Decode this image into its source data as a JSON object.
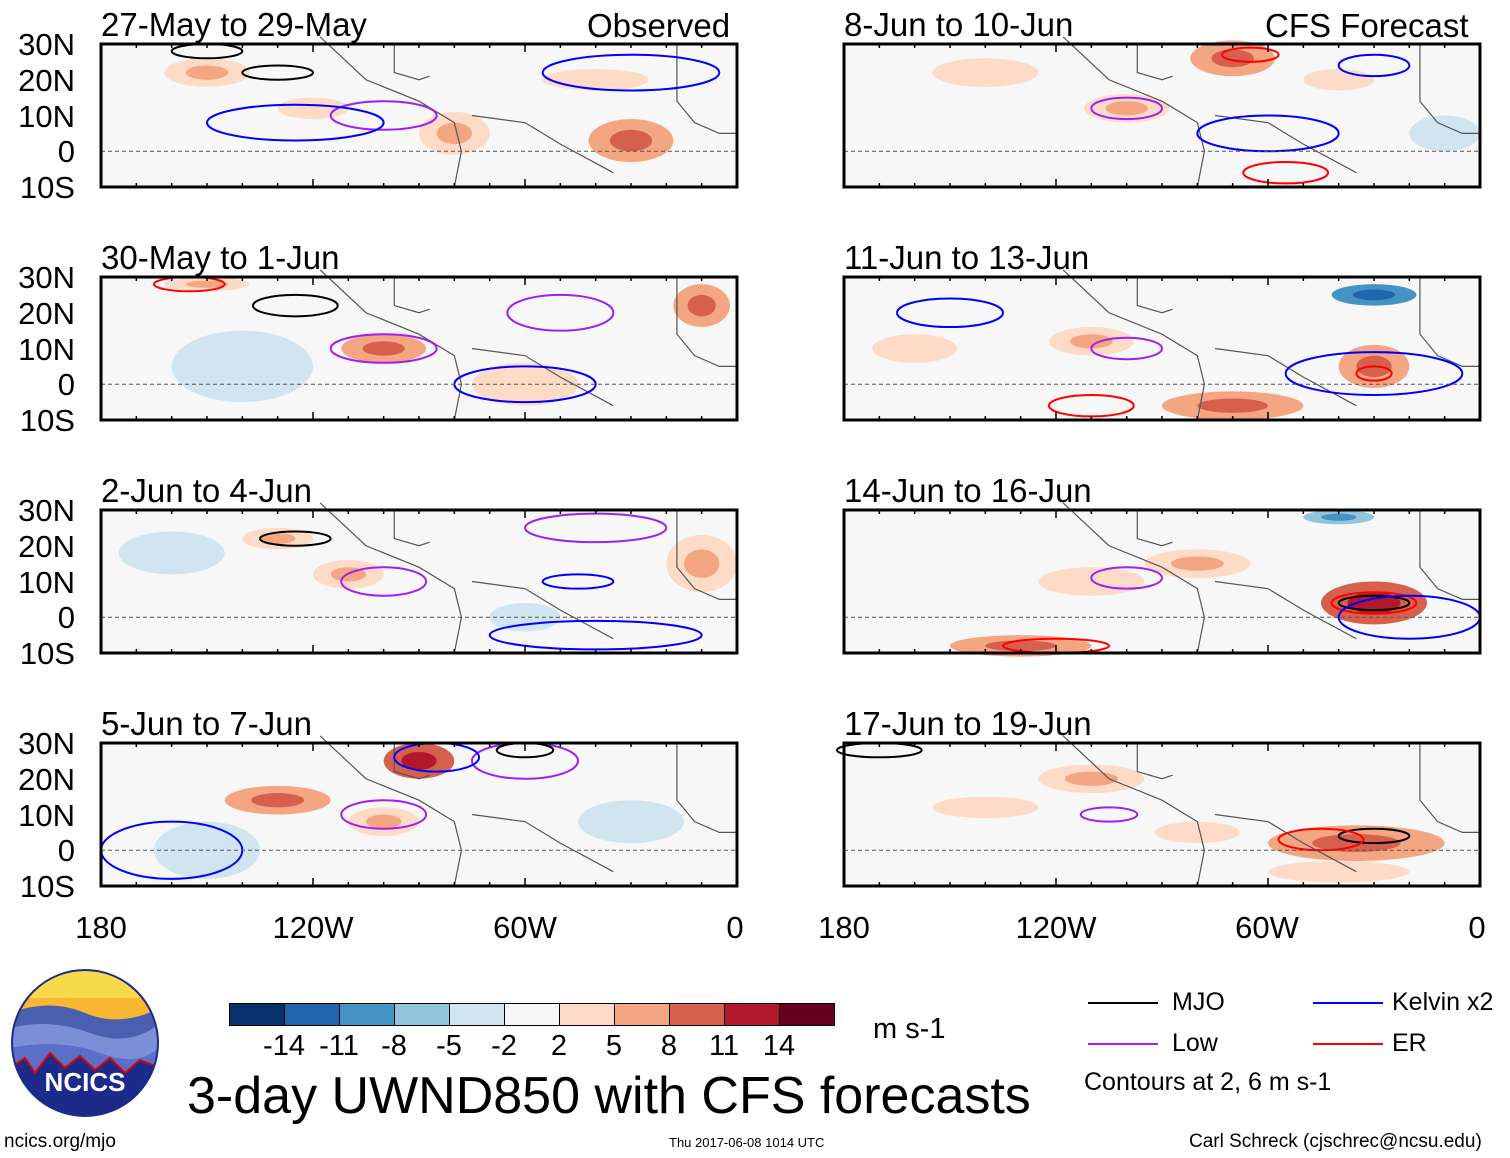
{
  "figure_title": "3-day UWND850 with CFS forecasts",
  "column_labels": {
    "left": "Observed",
    "right": "CFS Forecast"
  },
  "lat_labels": [
    "30N",
    "20N",
    "10N",
    "0",
    "10S"
  ],
  "lon_labels": [
    "180",
    "120W",
    "60W",
    "0"
  ],
  "colorbar": {
    "levels": [
      "-14",
      "-11",
      "-8",
      "-5",
      "-2",
      "2",
      "5",
      "8",
      "11",
      "14"
    ],
    "colors": [
      "#08306b",
      "#2166ac",
      "#4393c3",
      "#92c5de",
      "#d1e5f0",
      "#f7f7f7",
      "#fddbc7",
      "#f4a582",
      "#d6604d",
      "#b2182b",
      "#67001f"
    ],
    "units": "m s-1"
  },
  "legend": {
    "items": [
      {
        "label": "MJO",
        "color": "#000000"
      },
      {
        "label": "Kelvin x2",
        "color": "#0000ff"
      },
      {
        "label": "Low",
        "color": "#a020f0"
      },
      {
        "label": "ER",
        "color": "#ff0000"
      }
    ],
    "note": "Contours at 2, 6 m s-1"
  },
  "footer": {
    "left": "ncics.org/mjo",
    "center": "Thu 2017-06-08 1014 UTC",
    "right": "Carl Schreck (cjschrec@ncsu.edu)"
  },
  "logo_text": "NCICS",
  "chart_data": {
    "type": "heatmap",
    "lon_range": [
      -180,
      0
    ],
    "lat_range": [
      -10,
      30
    ],
    "panels": [
      {
        "title": "27-May to 29-May",
        "blobs": [
          [
            -150,
            22,
            12,
            4,
            5
          ],
          [
            -80,
            5,
            10,
            6,
            5
          ],
          [
            -30,
            3,
            12,
            6,
            6
          ],
          [
            -120,
            12,
            10,
            3,
            4
          ],
          [
            -40,
            20,
            15,
            3,
            3
          ]
        ],
        "contours": [
          [
            -130,
            22,
            10,
            2,
            "mjo"
          ],
          [
            -150,
            28,
            10,
            2,
            "mjo"
          ],
          [
            -100,
            10,
            15,
            4,
            "low"
          ],
          [
            -125,
            8,
            25,
            5,
            "kelvin"
          ],
          [
            -30,
            22,
            25,
            5,
            "kelvin"
          ]
        ]
      },
      {
        "title": "8-Jun to 10-Jun",
        "blobs": [
          [
            -70,
            26,
            12,
            5,
            8
          ],
          [
            -140,
            22,
            15,
            4,
            4
          ],
          [
            -100,
            12,
            12,
            4,
            5
          ],
          [
            -40,
            20,
            10,
            3,
            4
          ],
          [
            -10,
            5,
            10,
            5,
            -4
          ]
        ],
        "contours": [
          [
            -100,
            12,
            10,
            3,
            "low"
          ],
          [
            -65,
            27,
            8,
            2,
            "er"
          ],
          [
            -30,
            24,
            10,
            3,
            "kelvin"
          ],
          [
            -60,
            5,
            20,
            5,
            "kelvin"
          ],
          [
            -55,
            -6,
            12,
            3,
            "er"
          ]
        ]
      },
      {
        "title": "30-May to 1-Jun",
        "blobs": [
          [
            -150,
            28,
            12,
            2,
            5
          ],
          [
            -100,
            10,
            12,
            4,
            6
          ],
          [
            -60,
            0,
            15,
            6,
            4
          ],
          [
            -10,
            22,
            8,
            6,
            8
          ],
          [
            -140,
            5,
            20,
            10,
            -3
          ]
        ],
        "contours": [
          [
            -125,
            22,
            12,
            3,
            "mjo"
          ],
          [
            -100,
            10,
            15,
            4,
            "low"
          ],
          [
            -50,
            20,
            15,
            5,
            "low"
          ],
          [
            -60,
            0,
            20,
            5,
            "kelvin"
          ],
          [
            -155,
            28,
            10,
            2,
            "er"
          ]
        ]
      },
      {
        "title": "11-Jun to 13-Jun",
        "blobs": [
          [
            -30,
            25,
            12,
            3,
            -8
          ],
          [
            -110,
            12,
            12,
            4,
            5
          ],
          [
            -30,
            5,
            10,
            6,
            8
          ],
          [
            -70,
            -6,
            20,
            4,
            6
          ],
          [
            -160,
            10,
            12,
            4,
            4
          ]
        ],
        "contours": [
          [
            -100,
            10,
            10,
            3,
            "low"
          ],
          [
            -30,
            3,
            5,
            2,
            "er"
          ],
          [
            -30,
            3,
            25,
            6,
            "kelvin"
          ],
          [
            -150,
            20,
            15,
            4,
            "kelvin"
          ],
          [
            -110,
            -6,
            12,
            3,
            "er"
          ]
        ]
      },
      {
        "title": "2-Jun to 4-Jun",
        "blobs": [
          [
            -110,
            12,
            10,
            4,
            5
          ],
          [
            -130,
            22,
            10,
            3,
            5
          ],
          [
            -60,
            0,
            10,
            4,
            -3
          ],
          [
            -10,
            15,
            10,
            8,
            5
          ],
          [
            -160,
            18,
            15,
            6,
            -3
          ]
        ],
        "contours": [
          [
            -125,
            22,
            10,
            2,
            "mjo"
          ],
          [
            -100,
            10,
            12,
            4,
            "low"
          ],
          [
            -45,
            10,
            10,
            2,
            "kelvin"
          ],
          [
            -40,
            -5,
            30,
            4,
            "kelvin"
          ],
          [
            -40,
            25,
            20,
            4,
            "low"
          ]
        ]
      },
      {
        "title": "14-Jun to 16-Jun",
        "blobs": [
          [
            -30,
            4,
            15,
            6,
            11
          ],
          [
            -110,
            10,
            15,
            4,
            4
          ],
          [
            -80,
            15,
            15,
            4,
            5
          ],
          [
            -130,
            -8,
            20,
            3,
            6
          ],
          [
            -40,
            28,
            10,
            2,
            -5
          ]
        ],
        "contours": [
          [
            -30,
            4,
            10,
            2,
            "mjo"
          ],
          [
            -30,
            4,
            12,
            3,
            "er"
          ],
          [
            -100,
            11,
            10,
            3,
            "low"
          ],
          [
            -20,
            0,
            20,
            6,
            "kelvin"
          ],
          [
            -120,
            -8,
            15,
            2,
            "er"
          ]
        ]
      },
      {
        "title": "5-Jun to 7-Jun",
        "blobs": [
          [
            -90,
            25,
            10,
            5,
            11
          ],
          [
            -130,
            14,
            15,
            4,
            6
          ],
          [
            -100,
            8,
            10,
            4,
            5
          ],
          [
            -150,
            0,
            15,
            8,
            -3
          ],
          [
            -30,
            8,
            15,
            6,
            -3
          ]
        ],
        "contours": [
          [
            -100,
            10,
            12,
            4,
            "low"
          ],
          [
            -60,
            25,
            15,
            5,
            "low"
          ],
          [
            -160,
            0,
            20,
            8,
            "kelvin"
          ],
          [
            -85,
            26,
            12,
            4,
            "kelvin"
          ],
          [
            -60,
            28,
            8,
            2,
            "mjo"
          ]
        ]
      },
      {
        "title": "17-Jun to 19-Jun",
        "blobs": [
          [
            -35,
            2,
            25,
            5,
            8
          ],
          [
            -110,
            20,
            15,
            4,
            5
          ],
          [
            -140,
            12,
            15,
            3,
            4
          ],
          [
            -80,
            5,
            12,
            3,
            4
          ],
          [
            -40,
            -6,
            20,
            3,
            4
          ]
        ],
        "contours": [
          [
            -30,
            4,
            10,
            2,
            "mjo"
          ],
          [
            -45,
            3,
            12,
            3,
            "er"
          ],
          [
            -105,
            10,
            8,
            2,
            "low"
          ],
          [
            -170,
            28,
            12,
            2,
            "mjo"
          ]
        ]
      }
    ]
  }
}
